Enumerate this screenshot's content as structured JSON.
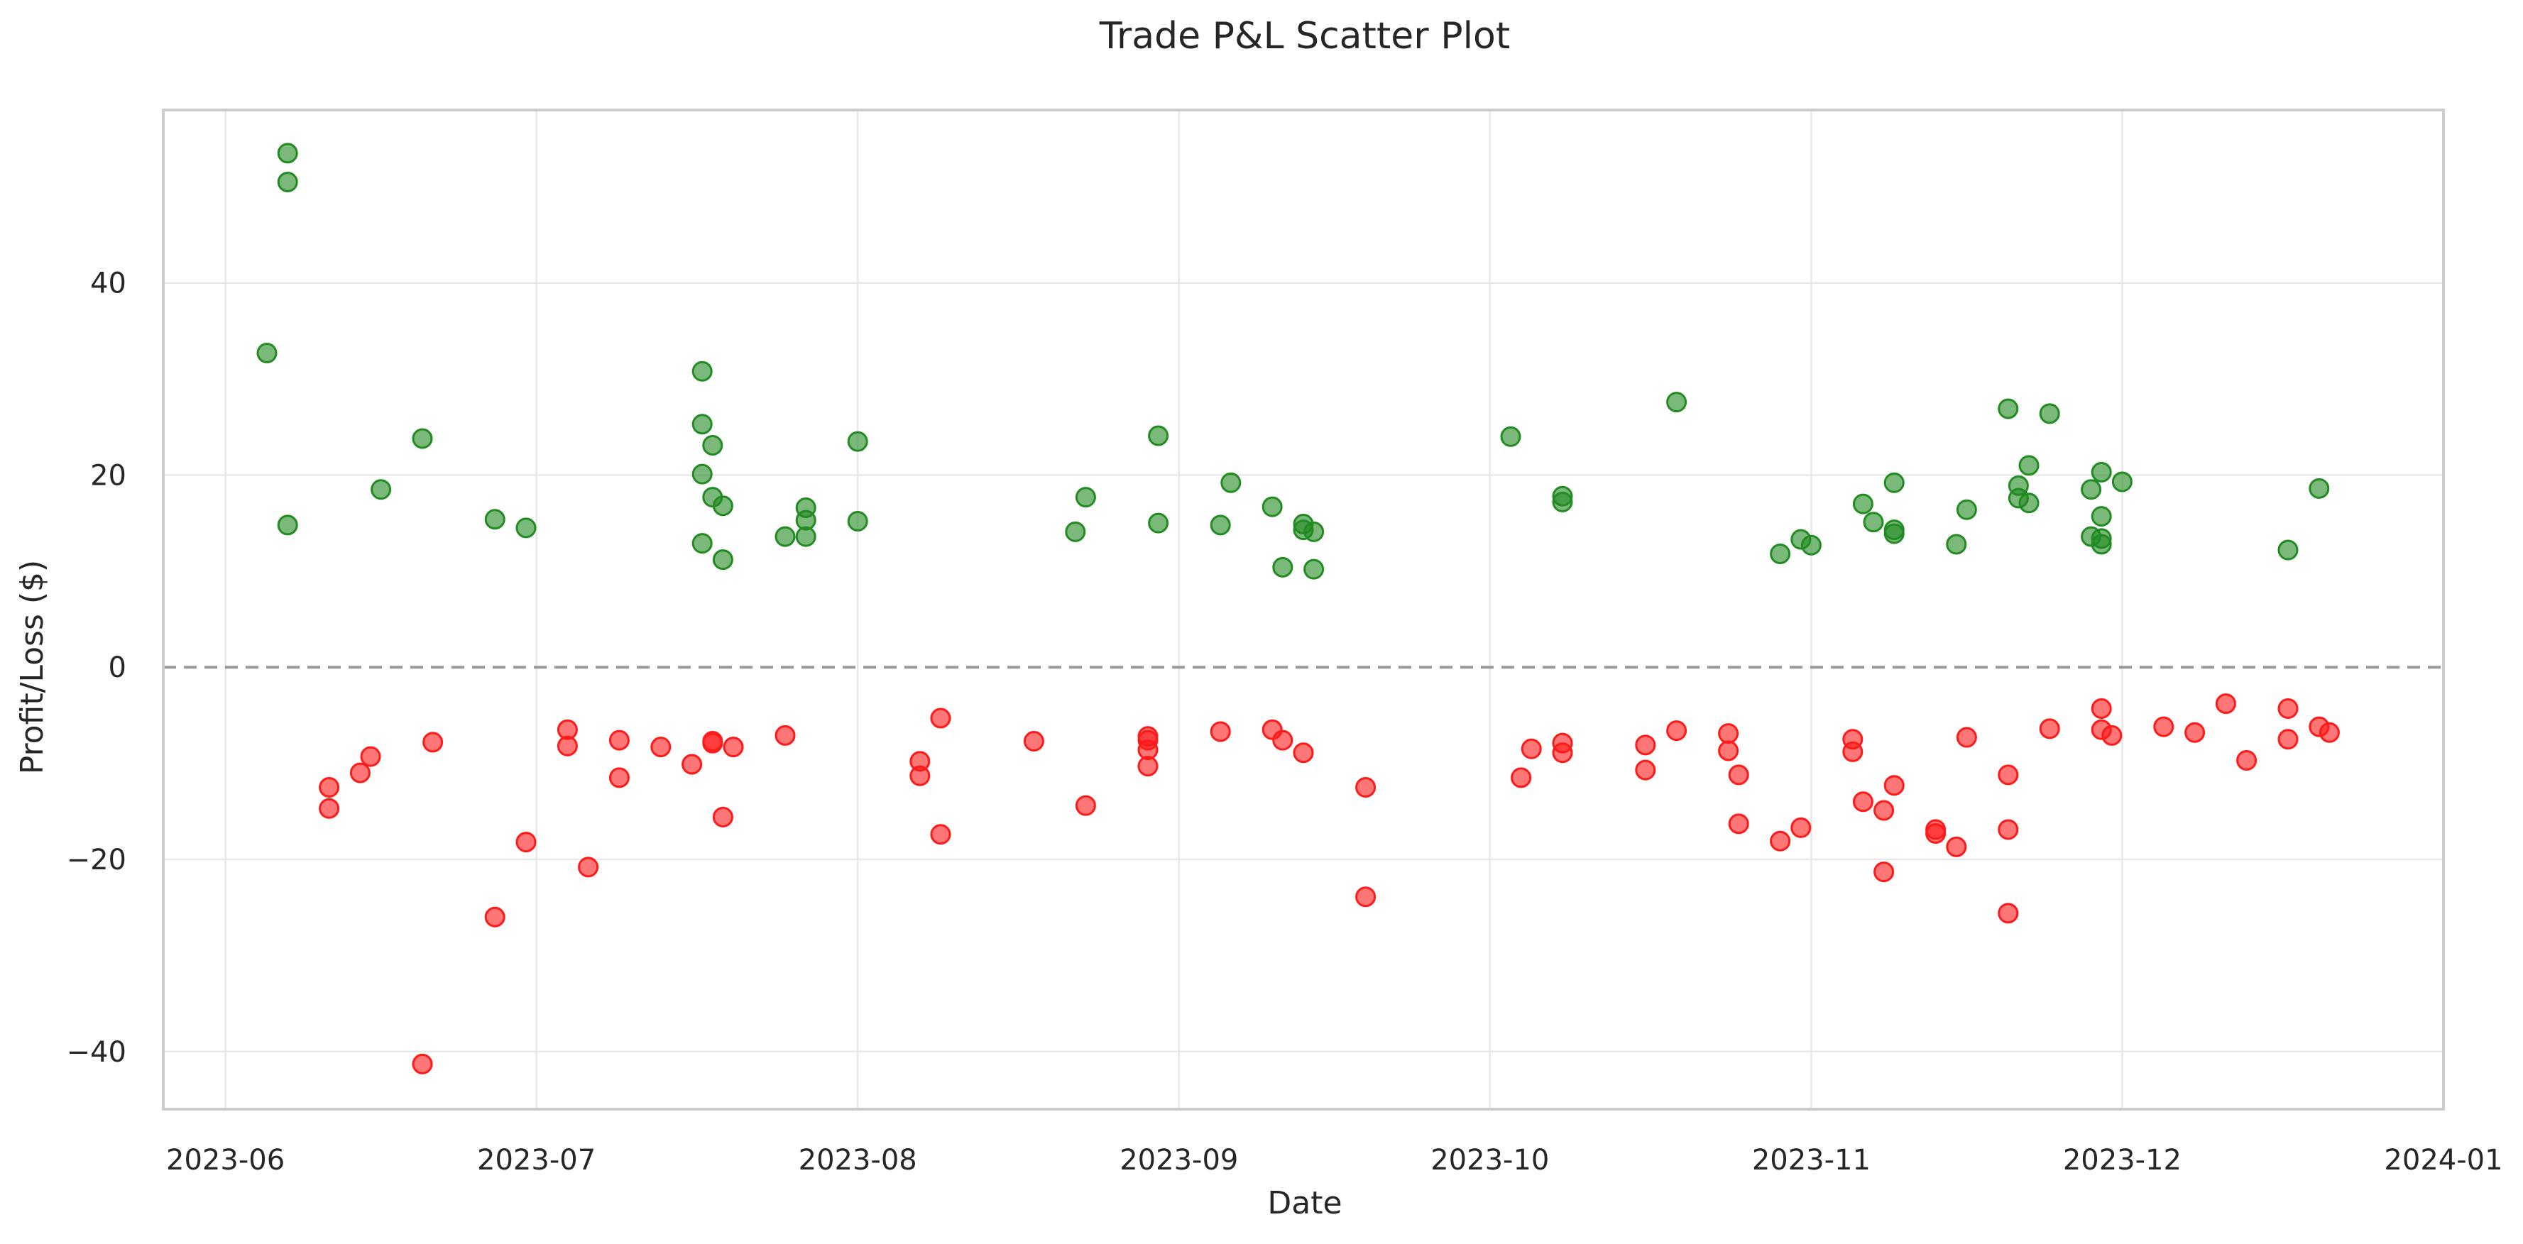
{
  "chart_data": {
    "type": "scatter",
    "title": "Trade P&L Scatter Plot",
    "xlabel": "Date",
    "ylabel": "Profit/Loss ($)",
    "x_axis": "date",
    "xlim": [
      "2023-05-26",
      "2024-01-01"
    ],
    "ylim": [
      -46,
      58
    ],
    "x_ticks": [
      "2023-06",
      "2023-07",
      "2023-08",
      "2023-09",
      "2023-10",
      "2023-11",
      "2023-12",
      "2024-01"
    ],
    "y_ticks": [
      -40,
      -20,
      0,
      20,
      40
    ],
    "grid": true,
    "reference_line": {
      "y": 0,
      "style": "dashed",
      "color": "#999999"
    },
    "colors": {
      "profit": "#228b22",
      "loss": "#ff1a1a"
    },
    "series": [
      {
        "color": "#228b22",
        "points": [
          [
            "2023-06-05",
            32.7
          ],
          [
            "2023-06-07",
            53.5
          ],
          [
            "2023-06-07",
            50.5
          ],
          [
            "2023-06-07",
            14.8
          ],
          [
            "2023-06-16",
            18.5
          ],
          [
            "2023-06-20",
            23.8
          ],
          [
            "2023-06-27",
            15.4
          ],
          [
            "2023-06-30",
            14.5
          ],
          [
            "2023-07-17",
            30.8
          ],
          [
            "2023-07-17",
            25.3
          ],
          [
            "2023-07-17",
            20.1
          ],
          [
            "2023-07-17",
            12.9
          ],
          [
            "2023-07-18",
            23.1
          ],
          [
            "2023-07-18",
            17.7
          ],
          [
            "2023-07-19",
            16.8
          ],
          [
            "2023-07-19",
            11.2
          ],
          [
            "2023-07-25",
            13.6
          ],
          [
            "2023-07-27",
            16.6
          ],
          [
            "2023-07-27",
            15.3
          ],
          [
            "2023-07-27",
            13.6
          ],
          [
            "2023-08-01",
            23.5
          ],
          [
            "2023-08-01",
            15.2
          ],
          [
            "2023-08-22",
            14.1
          ],
          [
            "2023-08-23",
            17.7
          ],
          [
            "2023-08-30",
            24.1
          ],
          [
            "2023-08-30",
            15.0
          ],
          [
            "2023-09-05",
            14.8
          ],
          [
            "2023-09-06",
            19.2
          ],
          [
            "2023-09-10",
            16.7
          ],
          [
            "2023-09-11",
            10.4
          ],
          [
            "2023-09-13",
            14.9
          ],
          [
            "2023-09-13",
            14.3
          ],
          [
            "2023-09-14",
            14.1
          ],
          [
            "2023-09-14",
            10.2
          ],
          [
            "2023-10-03",
            24.0
          ],
          [
            "2023-10-08",
            17.8
          ],
          [
            "2023-10-08",
            17.2
          ],
          [
            "2023-10-19",
            27.6
          ],
          [
            "2023-10-29",
            11.8
          ],
          [
            "2023-10-31",
            13.3
          ],
          [
            "2023-11-01",
            12.7
          ],
          [
            "2023-11-06",
            17.0
          ],
          [
            "2023-11-07",
            15.1
          ],
          [
            "2023-11-09",
            19.2
          ],
          [
            "2023-11-09",
            14.3
          ],
          [
            "2023-11-09",
            13.9
          ],
          [
            "2023-11-15",
            12.8
          ],
          [
            "2023-11-16",
            16.4
          ],
          [
            "2023-11-20",
            26.9
          ],
          [
            "2023-11-21",
            18.9
          ],
          [
            "2023-11-21",
            17.6
          ],
          [
            "2023-11-22",
            21.0
          ],
          [
            "2023-11-22",
            17.1
          ],
          [
            "2023-11-24",
            26.4
          ],
          [
            "2023-11-28",
            18.5
          ],
          [
            "2023-11-28",
            13.6
          ],
          [
            "2023-11-29",
            20.3
          ],
          [
            "2023-11-29",
            15.7
          ],
          [
            "2023-11-29",
            13.4
          ],
          [
            "2023-11-29",
            12.8
          ],
          [
            "2023-12-01",
            19.3
          ],
          [
            "2023-12-17",
            12.2
          ],
          [
            "2023-12-20",
            18.6
          ]
        ]
      },
      {
        "color": "#ff1a1a",
        "points": [
          [
            "2023-06-11",
            -12.5
          ],
          [
            "2023-06-11",
            -14.7
          ],
          [
            "2023-06-14",
            -11.0
          ],
          [
            "2023-06-15",
            -9.3
          ],
          [
            "2023-06-20",
            -41.3
          ],
          [
            "2023-06-21",
            -7.8
          ],
          [
            "2023-06-27",
            -26.0
          ],
          [
            "2023-06-30",
            -18.2
          ],
          [
            "2023-07-04",
            -6.5
          ],
          [
            "2023-07-04",
            -8.2
          ],
          [
            "2023-07-06",
            -20.8
          ],
          [
            "2023-07-09",
            -7.6
          ],
          [
            "2023-07-09",
            -11.5
          ],
          [
            "2023-07-13",
            -8.3
          ],
          [
            "2023-07-16",
            -10.1
          ],
          [
            "2023-07-18",
            -7.7
          ],
          [
            "2023-07-18",
            -7.9
          ],
          [
            "2023-07-19",
            -15.6
          ],
          [
            "2023-07-20",
            -8.3
          ],
          [
            "2023-07-25",
            -7.1
          ],
          [
            "2023-08-07",
            -9.8
          ],
          [
            "2023-08-07",
            -11.3
          ],
          [
            "2023-08-09",
            -5.3
          ],
          [
            "2023-08-09",
            -17.4
          ],
          [
            "2023-08-18",
            -7.7
          ],
          [
            "2023-08-23",
            -14.4
          ],
          [
            "2023-08-29",
            -7.2
          ],
          [
            "2023-08-29",
            -7.6
          ],
          [
            "2023-08-29",
            -8.6
          ],
          [
            "2023-08-29",
            -10.3
          ],
          [
            "2023-09-05",
            -6.7
          ],
          [
            "2023-09-10",
            -6.5
          ],
          [
            "2023-09-11",
            -7.6
          ],
          [
            "2023-09-13",
            -8.9
          ],
          [
            "2023-09-19",
            -12.5
          ],
          [
            "2023-09-19",
            -23.9
          ],
          [
            "2023-10-04",
            -11.5
          ],
          [
            "2023-10-05",
            -8.5
          ],
          [
            "2023-10-08",
            -7.9
          ],
          [
            "2023-10-08",
            -8.9
          ],
          [
            "2023-10-16",
            -8.1
          ],
          [
            "2023-10-16",
            -10.7
          ],
          [
            "2023-10-19",
            -6.6
          ],
          [
            "2023-10-24",
            -6.9
          ],
          [
            "2023-10-24",
            -8.7
          ],
          [
            "2023-10-25",
            -11.2
          ],
          [
            "2023-10-25",
            -16.3
          ],
          [
            "2023-10-29",
            -18.1
          ],
          [
            "2023-10-31",
            -16.7
          ],
          [
            "2023-11-05",
            -7.5
          ],
          [
            "2023-11-05",
            -8.8
          ],
          [
            "2023-11-06",
            -14.0
          ],
          [
            "2023-11-08",
            -14.9
          ],
          [
            "2023-11-08",
            -21.3
          ],
          [
            "2023-11-09",
            -12.3
          ],
          [
            "2023-11-13",
            -16.9
          ],
          [
            "2023-11-13",
            -17.3
          ],
          [
            "2023-11-15",
            -18.7
          ],
          [
            "2023-11-16",
            -7.3
          ],
          [
            "2023-11-20",
            -11.2
          ],
          [
            "2023-11-20",
            -16.9
          ],
          [
            "2023-11-20",
            -25.6
          ],
          [
            "2023-11-24",
            -6.4
          ],
          [
            "2023-11-29",
            -4.3
          ],
          [
            "2023-11-29",
            -6.5
          ],
          [
            "2023-11-30",
            -7.1
          ],
          [
            "2023-12-05",
            -6.2
          ],
          [
            "2023-12-08",
            -6.8
          ],
          [
            "2023-12-11",
            -3.8
          ],
          [
            "2023-12-13",
            -9.7
          ],
          [
            "2023-12-17",
            -4.3
          ],
          [
            "2023-12-17",
            -7.5
          ],
          [
            "2023-12-20",
            -6.2
          ],
          [
            "2023-12-21",
            -6.8
          ]
        ]
      }
    ]
  }
}
